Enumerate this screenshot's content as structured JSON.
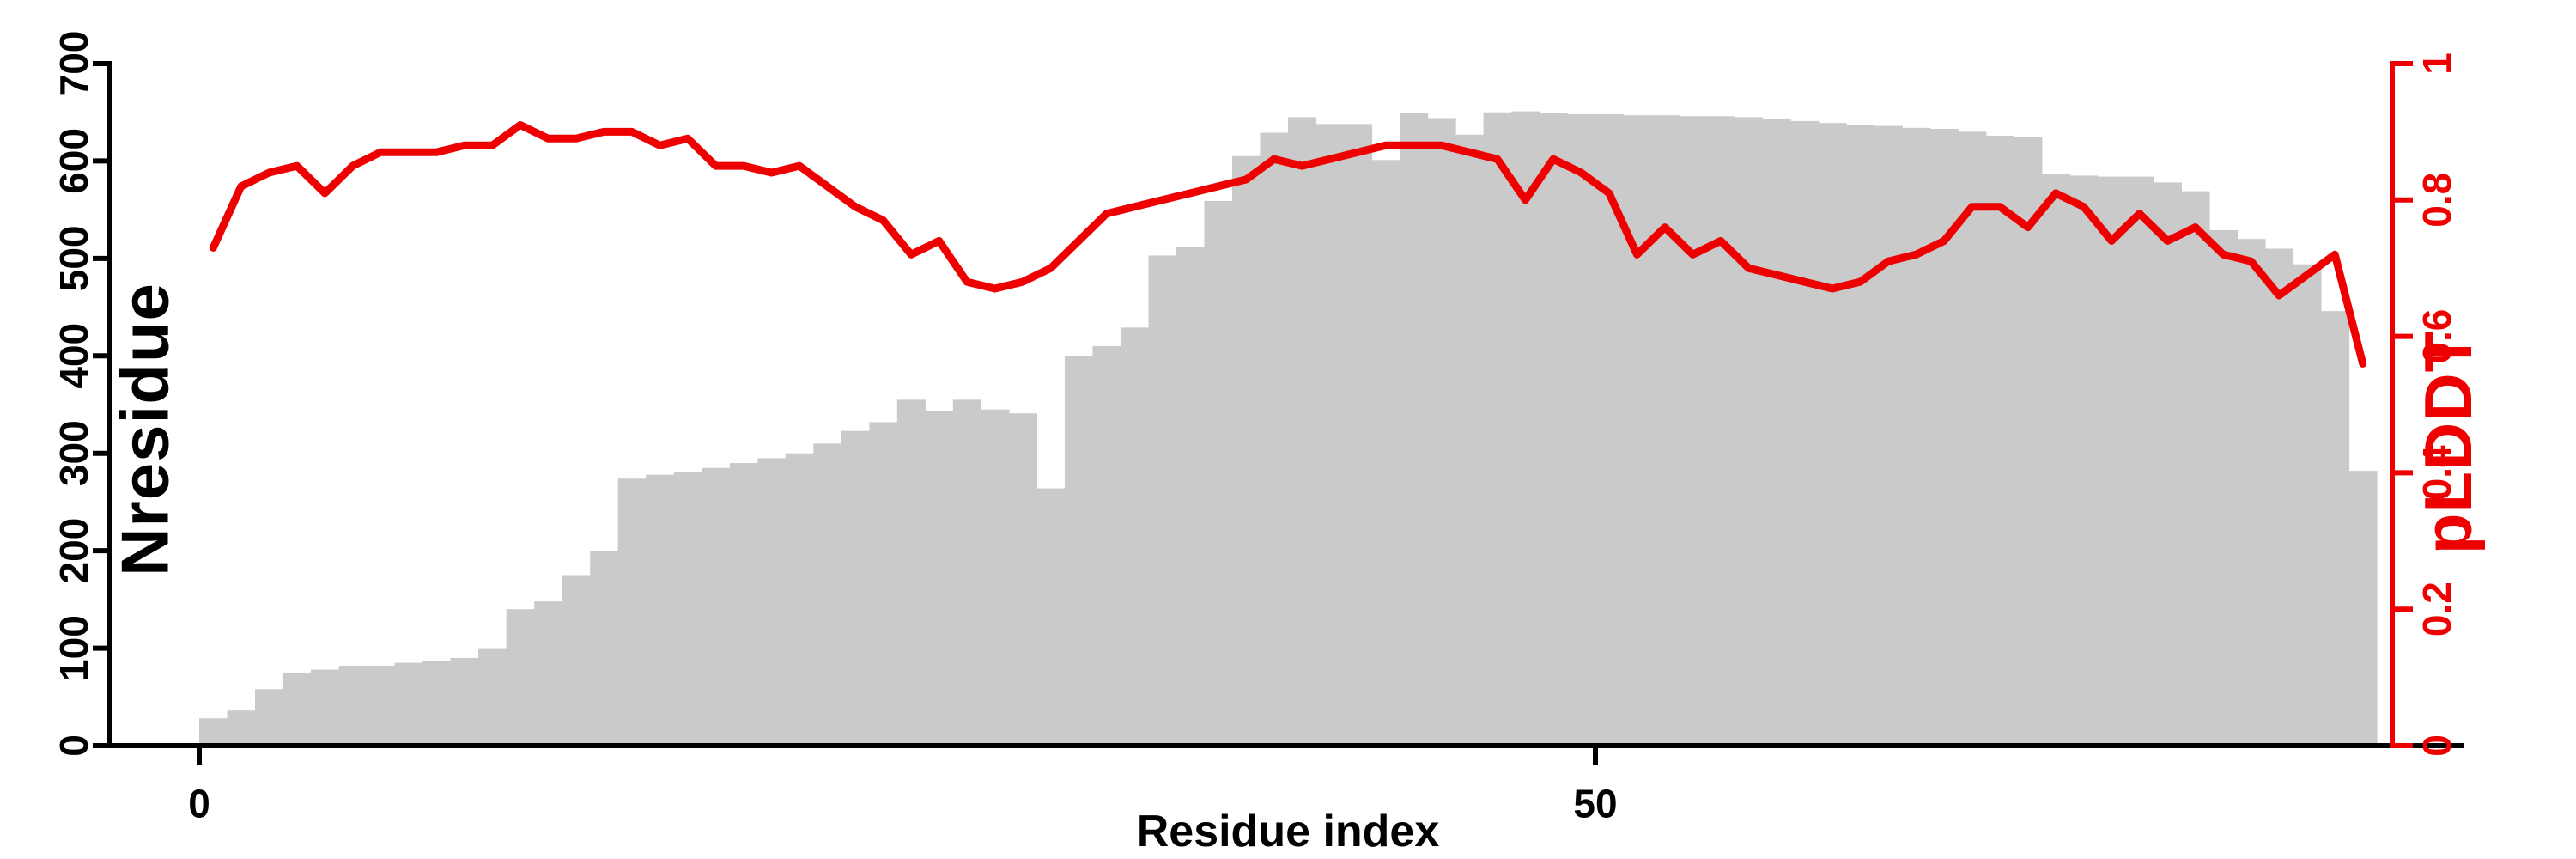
{
  "chart_data": {
    "type": "combo-bar-line",
    "title": "",
    "xlabel": "Residue index",
    "ylabel_left": "Nresidue",
    "ylabel_right": "pLDDT",
    "x_tick_labels": [
      "0",
      "50"
    ],
    "x_tick_values": [
      0,
      50
    ],
    "y_left_tick_labels": [
      "0",
      "100",
      "200",
      "300",
      "400",
      "500",
      "600",
      "700"
    ],
    "y_left_tick_values": [
      0,
      100,
      200,
      300,
      400,
      500,
      600,
      700
    ],
    "y_right_tick_labels": [
      "0",
      "0.2",
      "0.4",
      "0.6",
      "0.8",
      "1"
    ],
    "y_right_tick_values": [
      0,
      0.2,
      0.4,
      0.6,
      0.8,
      1
    ],
    "ylim_left": [
      0,
      700
    ],
    "ylim_right": [
      0,
      1
    ],
    "x_start": 0,
    "grid": "off",
    "legend": "none",
    "series": [
      {
        "name": "Nresidue",
        "kind": "bar",
        "axis": "left",
        "values": [
          28,
          36,
          58,
          75,
          78,
          82,
          82,
          85,
          87,
          90,
          100,
          140,
          148,
          175,
          200,
          274,
          278,
          281,
          285,
          290,
          295,
          300,
          310,
          323,
          332,
          355,
          343,
          355,
          345,
          341,
          264,
          400,
          410,
          429,
          503,
          512,
          559,
          605,
          629,
          645,
          638,
          638,
          601,
          649,
          644,
          627,
          650,
          651,
          649,
          648,
          648,
          647,
          647,
          646,
          646,
          645,
          643,
          641,
          639,
          637,
          636,
          634,
          633,
          630,
          626,
          625,
          587,
          585,
          584,
          584,
          578,
          569,
          529,
          520,
          510,
          494,
          446,
          282
        ]
      },
      {
        "name": "pLDDT",
        "kind": "line",
        "axis": "right",
        "values": [
          0.73,
          0.82,
          0.84,
          0.85,
          0.81,
          0.85,
          0.87,
          0.87,
          0.87,
          0.88,
          0.88,
          0.91,
          0.89,
          0.89,
          0.9,
          0.9,
          0.88,
          0.89,
          0.85,
          0.85,
          0.84,
          0.85,
          0.82,
          0.79,
          0.77,
          0.72,
          0.74,
          0.68,
          0.67,
          0.68,
          0.7,
          0.74,
          0.78,
          0.79,
          0.8,
          0.81,
          0.82,
          0.83,
          0.86,
          0.85,
          0.86,
          0.87,
          0.88,
          0.88,
          0.88,
          0.87,
          0.86,
          0.8,
          0.86,
          0.84,
          0.81,
          0.72,
          0.76,
          0.72,
          0.74,
          0.7,
          0.69,
          0.68,
          0.67,
          0.68,
          0.71,
          0.72,
          0.74,
          0.79,
          0.79,
          0.76,
          0.81,
          0.79,
          0.74,
          0.78,
          0.74,
          0.76,
          0.72,
          0.71,
          0.66,
          0.69,
          0.72,
          0.56
        ]
      }
    ],
    "colors": {
      "bar_fill": "#cacaca",
      "line": "#ee0000",
      "right_axis": "#ee0000",
      "left_axis": "#000000",
      "background": "#ffffff"
    }
  }
}
